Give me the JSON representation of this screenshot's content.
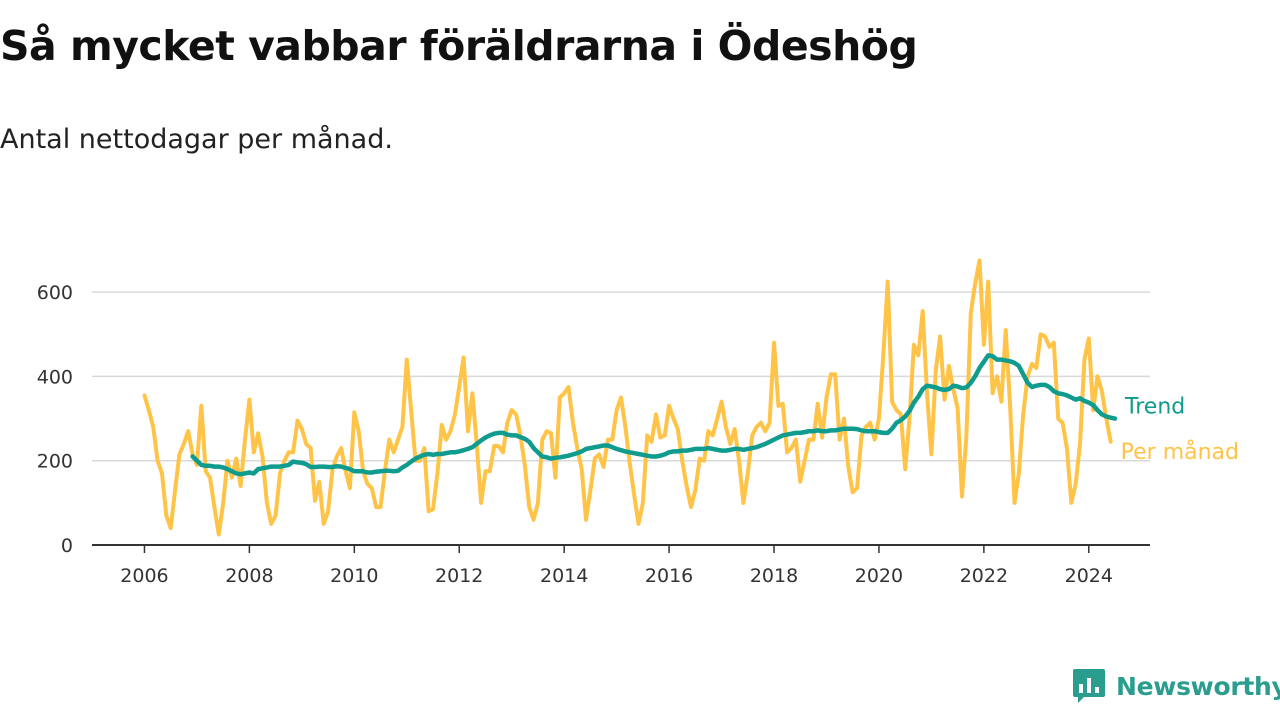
{
  "header": {
    "title": "Så mycket vabbar föräldrarna i Ödeshög",
    "subtitle": "Antal nettodagar per månad."
  },
  "brand": {
    "name": "Newsworthy",
    "icon": "newsworthy-logo-icon",
    "color": "#2a9d8f"
  },
  "colors": {
    "monthly": "#ffc447",
    "trend": "#0f9b8e",
    "grid": "#d9d9d9",
    "axis": "#333333"
  },
  "chart_data": {
    "type": "line",
    "x_type": "date-monthly",
    "xlim": [
      "2005-01",
      "2025-03"
    ],
    "ylim": [
      0,
      700
    ],
    "x_ticks": [
      "2006",
      "2008",
      "2010",
      "2012",
      "2014",
      "2016",
      "2018",
      "2020",
      "2022",
      "2024"
    ],
    "y_ticks": [
      0,
      200,
      400,
      600
    ],
    "grid": true,
    "series": [
      {
        "name": "Per månad",
        "start": "2006-01",
        "values": [
          355,
          320,
          280,
          200,
          170,
          70,
          40,
          130,
          215,
          240,
          270,
          215,
          190,
          330,
          175,
          160,
          90,
          25,
          100,
          200,
          160,
          205,
          140,
          250,
          345,
          220,
          265,
          210,
          100,
          50,
          70,
          170,
          200,
          220,
          220,
          295,
          275,
          240,
          230,
          105,
          150,
          50,
          80,
          180,
          210,
          230,
          175,
          135,
          315,
          270,
          175,
          145,
          135,
          90,
          90,
          175,
          250,
          220,
          250,
          280,
          440,
          320,
          200,
          200,
          230,
          80,
          85,
          170,
          285,
          250,
          270,
          310,
          375,
          445,
          270,
          360,
          240,
          100,
          175,
          175,
          235,
          235,
          220,
          290,
          320,
          310,
          260,
          190,
          90,
          60,
          100,
          250,
          270,
          265,
          160,
          350,
          360,
          375,
          290,
          230,
          180,
          60,
          130,
          205,
          215,
          185,
          250,
          250,
          320,
          350,
          280,
          195,
          120,
          50,
          100,
          260,
          245,
          310,
          255,
          260,
          330,
          300,
          275,
          200,
          140,
          90,
          130,
          205,
          200,
          270,
          260,
          300,
          340,
          280,
          240,
          275,
          200,
          100,
          170,
          260,
          280,
          290,
          270,
          290,
          480,
          330,
          335,
          220,
          230,
          250,
          150,
          200,
          250,
          250,
          335,
          255,
          350,
          405,
          405,
          250,
          300,
          185,
          125,
          135,
          260,
          280,
          290,
          250,
          300,
          450,
          625,
          340,
          320,
          310,
          180,
          300,
          475,
          450,
          555,
          360,
          215,
          415,
          495,
          345,
          425,
          370,
          325,
          115,
          260,
          550,
          620,
          675,
          475,
          625,
          360,
          400,
          340,
          510,
          330,
          100,
          170,
          310,
          400,
          430,
          420,
          500,
          495,
          470,
          480,
          300,
          290,
          230,
          100,
          145,
          240,
          440,
          490,
          320,
          400,
          365,
          300,
          245
        ]
      },
      {
        "name": "Trend",
        "start": "2006-12",
        "values": [
          210,
          200,
          190,
          188,
          188,
          186,
          186,
          184,
          180,
          175,
          170,
          168,
          170,
          172,
          170,
          180,
          182,
          184,
          186,
          186,
          186,
          188,
          190,
          198,
          196,
          195,
          192,
          185,
          185,
          186,
          186,
          185,
          185,
          187,
          186,
          183,
          180,
          175,
          175,
          175,
          172,
          172,
          174,
          175,
          176,
          176,
          175,
          176,
          184,
          190,
          198,
          205,
          210,
          214,
          216,
          214,
          216,
          216,
          218,
          220,
          220,
          222,
          225,
          228,
          232,
          240,
          248,
          255,
          260,
          264,
          266,
          266,
          262,
          260,
          260,
          256,
          252,
          245,
          230,
          220,
          210,
          208,
          205,
          207,
          208,
          210,
          212,
          215,
          218,
          222,
          228,
          230,
          232,
          234,
          236,
          236,
          232,
          228,
          225,
          222,
          220,
          218,
          216,
          214,
          212,
          210,
          210,
          212,
          215,
          220,
          222,
          222,
          224,
          224,
          226,
          228,
          228,
          228,
          230,
          228,
          226,
          224,
          224,
          226,
          228,
          228,
          226,
          228,
          230,
          232,
          236,
          240,
          245,
          250,
          255,
          260,
          262,
          264,
          266,
          266,
          268,
          270,
          270,
          272,
          270,
          270,
          272,
          272,
          274,
          276,
          276,
          276,
          275,
          272,
          270,
          270,
          270,
          268,
          266,
          266,
          276,
          290,
          296,
          305,
          318,
          338,
          352,
          370,
          378,
          376,
          374,
          370,
          368,
          370,
          378,
          376,
          372,
          374,
          385,
          400,
          420,
          435,
          450,
          448,
          440,
          440,
          438,
          436,
          432,
          425,
          405,
          385,
          375,
          378,
          380,
          380,
          375,
          365,
          360,
          358,
          355,
          350,
          345,
          348,
          342,
          338,
          332,
          320,
          310,
          305,
          302,
          300
        ]
      }
    ]
  }
}
